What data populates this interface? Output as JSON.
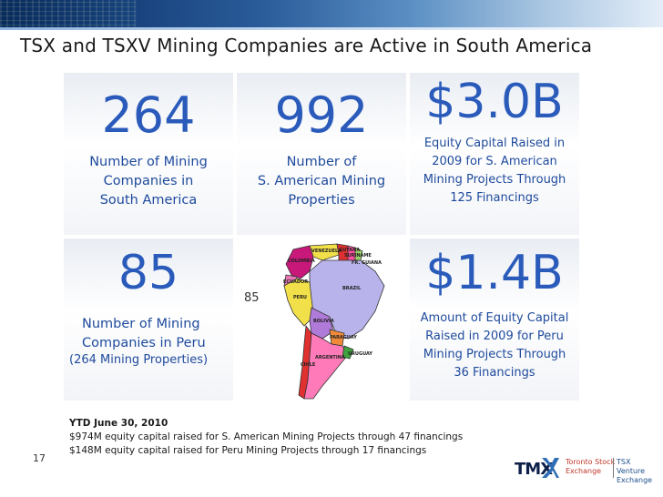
{
  "slide": {
    "title": "TSX and TSXV Mining Companies are Active in South America",
    "page_number": "17"
  },
  "cells": {
    "c1": {
      "value": "264",
      "lines": [
        "Number of Mining",
        "Companies in",
        "South America"
      ]
    },
    "c2": {
      "value": "992",
      "lines": [
        "Number of",
        "S. American Mining",
        "Properties"
      ]
    },
    "c3": {
      "value": "$3.0B",
      "lines": [
        "Equity Capital Raised in",
        "2009 for S. American",
        "Mining Projects Through",
        "125 Financings"
      ]
    },
    "c4": {
      "value": "85",
      "lines": [
        "Number of Mining",
        "Companies in Peru"
      ],
      "sub": "(264 Mining Properties)"
    },
    "c5": {
      "map_number": "85",
      "countries": [
        "VENEZUELA",
        "GUYANA",
        "SURINAME",
        "FR. GUIANA",
        "COLOMBIA",
        "ECUADOR",
        "PERU",
        "BRAZIL",
        "BOLIVIA",
        "PARAGUAY",
        "CHILE",
        "ARGENTINA",
        "URUGUAY"
      ]
    },
    "c6": {
      "value": "$1.4B",
      "lines": [
        "Amount of Equity Capital",
        "Raised in 2009 for Peru",
        "Mining Projects Through",
        "36 Financings"
      ]
    }
  },
  "notes": {
    "heading": "YTD June 30, 2010",
    "line1": "$974M equity capital raised for S. American Mining Projects through 47 financings",
    "line2": "$148M equity capital raised for Peru Mining Projects through 17 financings"
  },
  "footer": {
    "brand": "TMX",
    "exchange1_line1": "Toronto Stock",
    "exchange1_line2": "Exchange",
    "exchange2_line1": "TSX Venture",
    "exchange2_line2": "Exchange"
  },
  "colors": {
    "accent": "#2a5bbb",
    "text_blue": "#1e4a9c",
    "tmx_red": "#c0392b"
  }
}
